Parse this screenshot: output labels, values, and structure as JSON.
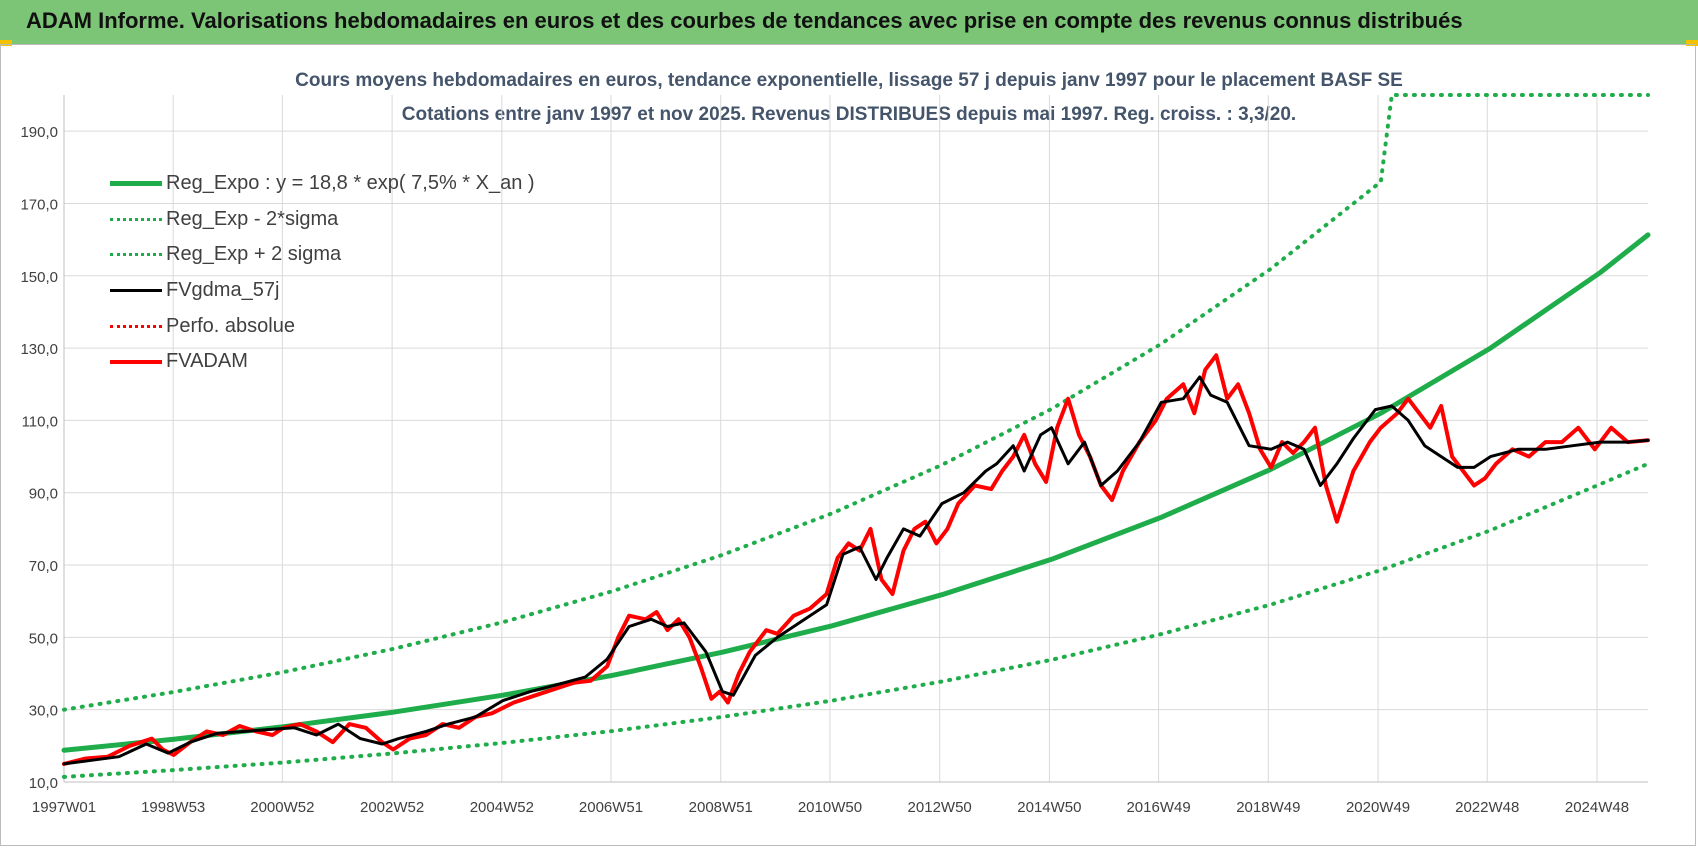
{
  "header": {
    "title": "ADAM Informe. Valorisations hebdomadaires en euros et des courbes de tendances avec prise en compte des revenus connus distribués"
  },
  "chart_data": {
    "type": "line",
    "title": "Cours moyens hebdomadaires en euros, tendance exponentielle, lissage 57 j depuis janv 1997 pour le placement BASF SE",
    "subtitle": "Cotations entre janv 1997 et nov 2025. Revenus DISTRIBUES depuis mai 1997. Reg. croiss. : 3,3/20.",
    "ylim": [
      10,
      200
    ],
    "xlim": [
      1997.0,
      2025.87
    ],
    "grid": true,
    "legend_position": "top-left",
    "x_ticks": [
      {
        "label": "1997W01",
        "x": 1997.0
      },
      {
        "label": "1998W53",
        "x": 1998.99
      },
      {
        "label": "2000W52",
        "x": 2000.98
      },
      {
        "label": "2002W52",
        "x": 2002.98
      },
      {
        "label": "2004W52",
        "x": 2004.98
      },
      {
        "label": "2006W51",
        "x": 2006.97
      },
      {
        "label": "2008W51",
        "x": 2008.97
      },
      {
        "label": "2010W50",
        "x": 2010.96
      },
      {
        "label": "2012W50",
        "x": 2012.96
      },
      {
        "label": "2014W50",
        "x": 2014.96
      },
      {
        "label": "2016W49",
        "x": 2016.95
      },
      {
        "label": "2018W49",
        "x": 2018.95
      },
      {
        "label": "2020W49",
        "x": 2020.95
      },
      {
        "label": "2022W48",
        "x": 2022.94
      },
      {
        "label": "2024W48",
        "x": 2024.94
      }
    ],
    "y_ticks": [
      {
        "label": "10,0",
        "y": 10
      },
      {
        "label": "30,0",
        "y": 30
      },
      {
        "label": "50,0",
        "y": 50
      },
      {
        "label": "70,0",
        "y": 70
      },
      {
        "label": "90,0",
        "y": 90
      },
      {
        "label": "110,0",
        "y": 110
      },
      {
        "label": "130,0",
        "y": 130
      },
      {
        "label": "150,0",
        "y": 150
      },
      {
        "label": "170,0",
        "y": 170
      },
      {
        "label": "190,0",
        "y": 190
      }
    ],
    "series": [
      {
        "name": "Reg_Expo : y = 18,8 * exp( 7,5% *  X_an )",
        "color": "#1fad4b",
        "style": "solid",
        "x": [
          1997.0,
          1999.0,
          2001.0,
          2003.0,
          2005.0,
          2007.0,
          2009.0,
          2011.0,
          2013.0,
          2015.0,
          2017.0,
          2019.0,
          2021.0,
          2023.0,
          2025.0,
          2025.87
        ],
        "y": [
          18.8,
          21.8,
          25.3,
          29.3,
          34.0,
          39.5,
          45.9,
          53.2,
          61.8,
          71.6,
          83.2,
          96.5,
          112.0,
          130.0,
          150.9,
          161.3
        ]
      },
      {
        "name": "Reg_Exp - 2*sigma",
        "color": "#1fad4b",
        "style": "dotted",
        "x": [
          1997.0,
          1999.0,
          2001.0,
          2003.0,
          2005.0,
          2007.0,
          2009.0,
          2011.0,
          2013.0,
          2015.0,
          2017.0,
          2019.0,
          2021.0,
          2023.0,
          2025.0,
          2025.87
        ],
        "y": [
          11.4,
          13.3,
          15.4,
          17.9,
          20.8,
          24.1,
          28.0,
          32.5,
          37.8,
          43.8,
          50.9,
          59.1,
          68.6,
          79.6,
          92.4,
          98.0
        ]
      },
      {
        "name": "Reg_Exp + 2 sigma",
        "color": "#1fad4b",
        "style": "dotted",
        "x": [
          1997.0,
          1999.0,
          2001.0,
          2003.0,
          2005.0,
          2007.0,
          2009.0,
          2011.0,
          2013.0,
          2015.0,
          2017.0,
          2019.0,
          2021.0,
          2021.2,
          2025.87
        ],
        "y": [
          30.0,
          34.9,
          40.4,
          46.8,
          54.2,
          62.8,
          72.8,
          84.3,
          97.7,
          113.2,
          131.2,
          152.0,
          176.0,
          200.0,
          200.0
        ]
      },
      {
        "name": "FVgdma_57j",
        "color": "#000000",
        "style": "solid",
        "x": [
          1997.0,
          1997.5,
          1998.0,
          1998.5,
          1998.9,
          1999.3,
          1999.8,
          2000.3,
          2000.7,
          2001.2,
          2001.6,
          2002.0,
          2002.4,
          2002.8,
          2003.1,
          2003.6,
          2004.0,
          2004.5,
          2005.0,
          2005.5,
          2006.0,
          2006.5,
          2006.9,
          2007.3,
          2007.7,
          2008.0,
          2008.3,
          2008.7,
          2009.0,
          2009.2,
          2009.6,
          2010.0,
          2010.5,
          2010.9,
          2011.2,
          2011.5,
          2011.8,
          2012.0,
          2012.3,
          2012.6,
          2013.0,
          2013.4,
          2013.8,
          2014.0,
          2014.3,
          2014.5,
          2014.8,
          2015.0,
          2015.3,
          2015.6,
          2015.9,
          2016.2,
          2016.6,
          2017.0,
          2017.4,
          2017.7,
          2017.9,
          2018.2,
          2018.6,
          2019.0,
          2019.3,
          2019.6,
          2019.9,
          2020.2,
          2020.5,
          2020.9,
          2021.2,
          2021.5,
          2021.8,
          2022.1,
          2022.4,
          2022.7,
          2023.0,
          2023.5,
          2024.0,
          2024.5,
          2025.0,
          2025.5,
          2025.87
        ],
        "y": [
          15.0,
          16.0,
          17.0,
          20.5,
          18.0,
          21.0,
          23.5,
          24.0,
          24.5,
          25.0,
          23.0,
          26.0,
          22.0,
          20.5,
          22.0,
          24.0,
          26.0,
          28.0,
          32.5,
          35.0,
          37.0,
          39.0,
          44.0,
          53.0,
          55.0,
          53.0,
          54.0,
          46.0,
          35.0,
          34.0,
          45.0,
          50.0,
          55.0,
          59.0,
          73.0,
          75.0,
          66.0,
          72.0,
          80.0,
          78.0,
          87.0,
          90.0,
          96.0,
          98.0,
          103.0,
          96.0,
          106.0,
          108.0,
          98.0,
          104.0,
          92.0,
          96.0,
          104.0,
          115.0,
          116.0,
          122.0,
          117.0,
          115.0,
          103.0,
          102.0,
          104.0,
          102.0,
          92.0,
          98.0,
          105.0,
          113.0,
          114.0,
          110.0,
          103.0,
          100.0,
          97.0,
          97.0,
          100.0,
          102.0,
          102.0,
          103.0,
          104.0,
          104.0,
          104.5
        ]
      },
      {
        "name": "Perfo. absolue",
        "color": "#ff0000",
        "style": "dotted",
        "x": [],
        "y": []
      },
      {
        "name": "FVADAM",
        "color": "#ff0000",
        "style": "solid",
        "x": [
          1997.0,
          1997.4,
          1997.8,
          1998.2,
          1998.6,
          1998.8,
          1999.0,
          1999.3,
          1999.6,
          1999.9,
          2000.2,
          2000.5,
          2000.8,
          2001.0,
          2001.3,
          2001.6,
          2001.9,
          2002.2,
          2002.5,
          2002.8,
          2003.0,
          2003.3,
          2003.6,
          2003.9,
          2004.2,
          2004.5,
          2004.8,
          2005.2,
          2005.6,
          2006.0,
          2006.3,
          2006.6,
          2006.9,
          2007.1,
          2007.3,
          2007.6,
          2007.8,
          2008.0,
          2008.2,
          2008.4,
          2008.6,
          2008.8,
          2008.95,
          2009.1,
          2009.3,
          2009.5,
          2009.8,
          2010.0,
          2010.3,
          2010.6,
          2010.9,
          2011.1,
          2011.3,
          2011.5,
          2011.7,
          2011.9,
          2012.1,
          2012.3,
          2012.5,
          2012.7,
          2012.9,
          2013.1,
          2013.3,
          2013.6,
          2013.9,
          2014.1,
          2014.3,
          2014.5,
          2014.7,
          2014.9,
          2015.1,
          2015.3,
          2015.5,
          2015.7,
          2015.9,
          2016.1,
          2016.3,
          2016.6,
          2016.9,
          2017.1,
          2017.4,
          2017.6,
          2017.8,
          2018.0,
          2018.2,
          2018.4,
          2018.6,
          2018.8,
          2019.0,
          2019.2,
          2019.4,
          2019.6,
          2019.8,
          2020.0,
          2020.2,
          2020.5,
          2020.8,
          2021.0,
          2021.3,
          2021.5,
          2021.7,
          2021.9,
          2022.1,
          2022.3,
          2022.5,
          2022.7,
          2022.9,
          2023.1,
          2023.4,
          2023.7,
          2024.0,
          2024.3,
          2024.6,
          2024.9,
          2025.2,
          2025.5,
          2025.87
        ],
        "y": [
          15.0,
          16.5,
          17.0,
          20.0,
          22.0,
          19.0,
          17.5,
          21.0,
          24.0,
          23.0,
          25.5,
          24.0,
          23.0,
          25.0,
          26.0,
          24.0,
          21.0,
          26.0,
          25.0,
          21.0,
          19.0,
          22.0,
          23.0,
          26.0,
          25.0,
          28.0,
          29.0,
          32.0,
          34.0,
          36.0,
          37.5,
          38.0,
          42.0,
          50.0,
          56.0,
          55.0,
          57.0,
          52.0,
          55.0,
          50.0,
          42.0,
          33.0,
          35.0,
          32.0,
          40.0,
          46.0,
          52.0,
          51.0,
          56.0,
          58.0,
          62.0,
          72.0,
          76.0,
          74.0,
          80.0,
          66.0,
          62.0,
          74.0,
          80.0,
          82.0,
          76.0,
          80.0,
          87.0,
          92.0,
          91.0,
          96.0,
          100.0,
          106.0,
          98.0,
          93.0,
          108.0,
          116.0,
          106.0,
          100.0,
          92.0,
          88.0,
          96.0,
          104.0,
          110.0,
          116.0,
          120.0,
          112.0,
          124.0,
          128.0,
          116.0,
          120.0,
          112.0,
          102.0,
          97.0,
          104.0,
          101.0,
          104.0,
          108.0,
          92.0,
          82.0,
          96.0,
          104.0,
          108.0,
          112.0,
          116.0,
          112.0,
          108.0,
          114.0,
          100.0,
          96.0,
          92.0,
          94.0,
          98.0,
          102.0,
          100.0,
          104.0,
          104.0,
          108.0,
          102.0,
          108.0,
          104.0,
          104.5
        ]
      }
    ]
  }
}
